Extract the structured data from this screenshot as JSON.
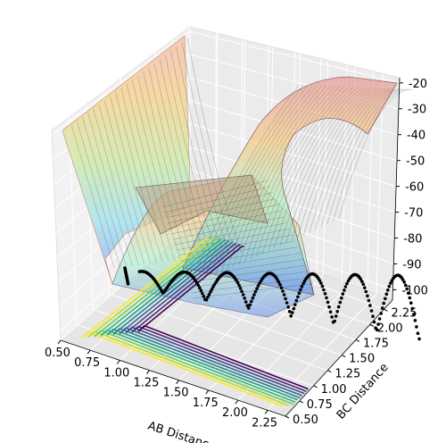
{
  "chart_data": {
    "type": "surface3d",
    "xlabel": "AB Distance",
    "ylabel": "BC Distance",
    "zlabel": "",
    "x_ticks": [
      "0.50",
      "0.75",
      "1.00",
      "1.25",
      "1.50",
      "1.75",
      "2.00",
      "2.25"
    ],
    "y_ticks": [
      "0.50",
      "0.75",
      "1.00",
      "1.25",
      "1.50",
      "1.75",
      "2.00",
      "2.25"
    ],
    "z_ticks": [
      "-20",
      "-30",
      "-40",
      "-50",
      "-60",
      "-70",
      "-80",
      "-90",
      "-100"
    ],
    "xlim": [
      0.5,
      2.4
    ],
    "ylim": [
      0.5,
      2.4
    ],
    "zlim": [
      -104,
      -18
    ],
    "colormap": "jet",
    "surface_alpha": 0.3,
    "contour_colormap": "viridis",
    "trajectory_color": "#000000",
    "grid": true
  }
}
